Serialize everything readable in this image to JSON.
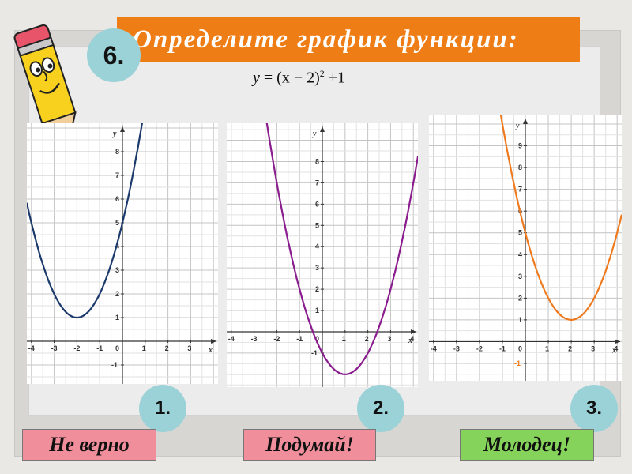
{
  "slide": {
    "number_badge": "6.",
    "title": "Определите график функции:",
    "formula": {
      "lhs": "y",
      "base": "(x − 2)",
      "exponent": "2",
      "rest": "+1"
    }
  },
  "graphs": [
    {
      "id": 1,
      "badge": "1.",
      "color": "#1b3a6b",
      "vertex": [
        -2,
        1
      ],
      "x_range": [
        -4.2,
        4.2
      ],
      "y_range": [
        -1.8,
        9.2
      ],
      "x_ticks": [
        "-4",
        "-3",
        "-2",
        "-1",
        "0",
        "1",
        "2",
        "3"
      ],
      "y_ticks": [
        "-1",
        "1",
        "2",
        "3",
        "4",
        "5",
        "6",
        "7",
        "8"
      ],
      "axis_labels": {
        "x": "x",
        "y": "y"
      },
      "answer": {
        "label": "Не верно",
        "color": "#f08f9b"
      }
    },
    {
      "id": 2,
      "badge": "2.",
      "color": "#8a1c8e",
      "vertex": [
        1,
        -2
      ],
      "x_range": [
        -4.2,
        4.2
      ],
      "y_range": [
        -2.6,
        9.8
      ],
      "x_ticks": [
        "-4",
        "-3",
        "-2",
        "-1",
        "0",
        "1",
        "2",
        "3",
        "4"
      ],
      "y_ticks": [
        "-1",
        "1",
        "2",
        "3",
        "4",
        "5",
        "6",
        "7",
        "8"
      ],
      "axis_labels": {
        "x": "x",
        "y": "y"
      },
      "answer": {
        "label": "Подумай!",
        "color": "#f08f9b"
      }
    },
    {
      "id": 3,
      "badge": "3.",
      "color": "#ef7a1e",
      "vertex": [
        2,
        1
      ],
      "x_range": [
        -4.2,
        4.2
      ],
      "y_range": [
        -1.8,
        10.4
      ],
      "x_ticks": [
        "-4",
        "-3",
        "-2",
        "-1",
        "0",
        "1",
        "2",
        "3",
        "4"
      ],
      "y_ticks": [
        "-1",
        "1",
        "2",
        "3",
        "4",
        "5",
        "6",
        "7",
        "8",
        "9"
      ],
      "axis_labels": {
        "x": "x",
        "y": "y"
      },
      "answer": {
        "label": "Молодец!",
        "color": "#86d35b"
      }
    }
  ],
  "decor": {
    "mascot": "pencil-mascot-icon"
  }
}
